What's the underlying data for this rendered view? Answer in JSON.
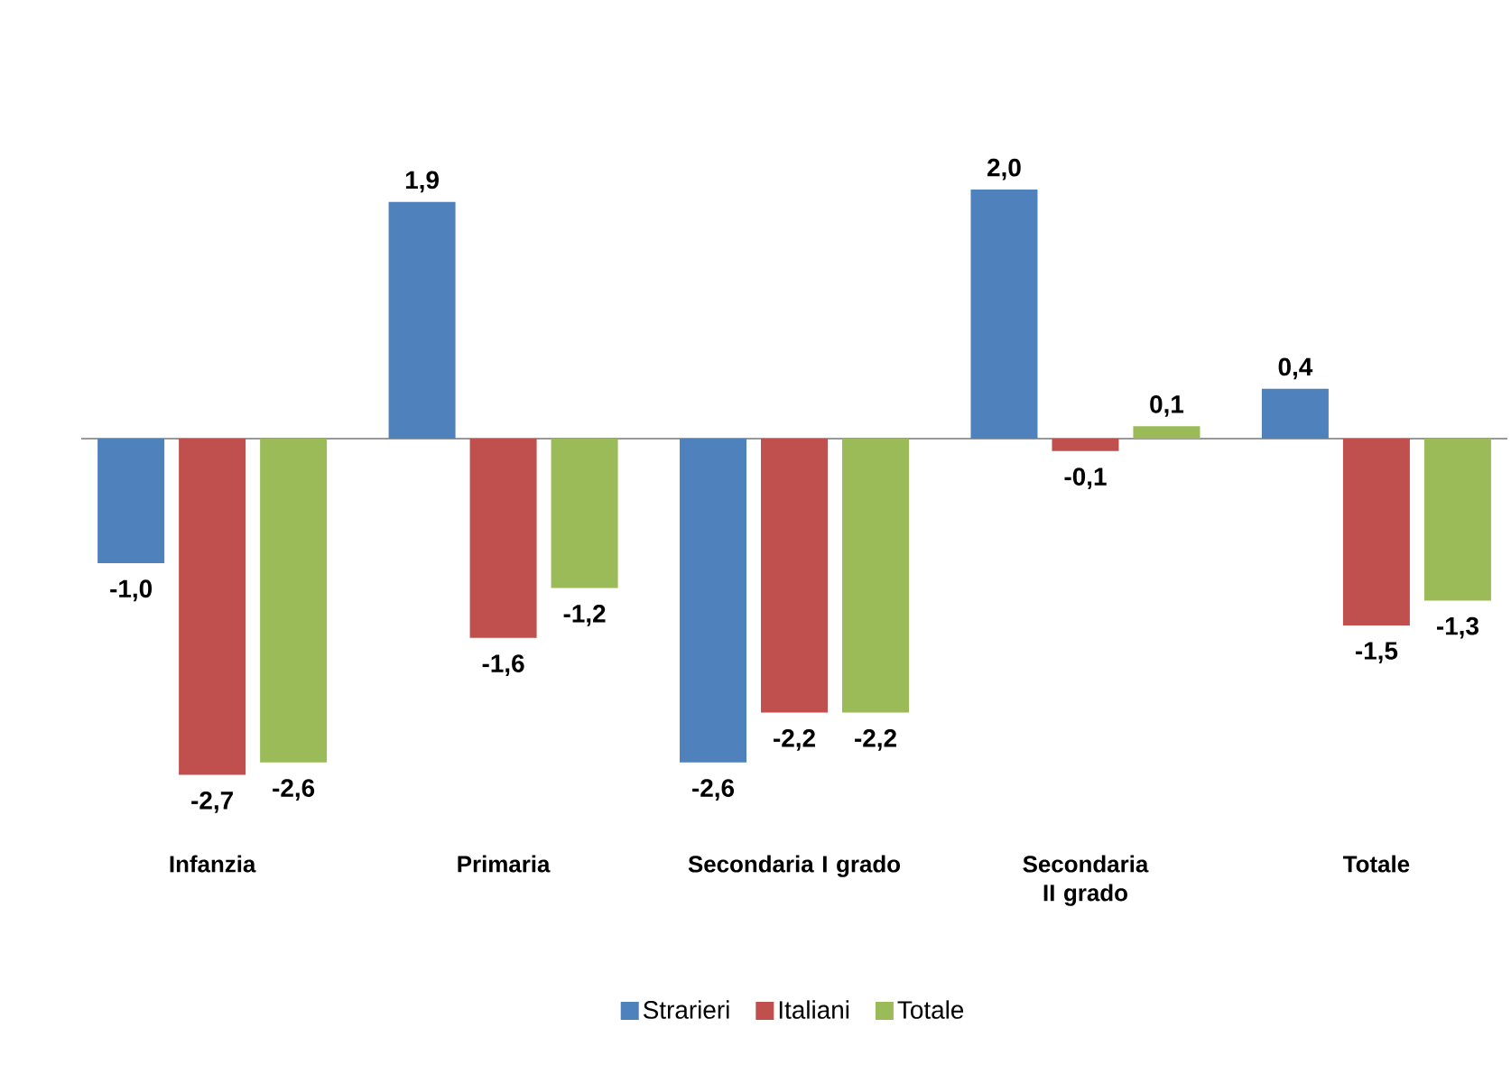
{
  "chart_data": {
    "type": "bar",
    "categories": [
      "Infanzia",
      "Primaria",
      "Secondaria I grado",
      "Secondaria II grado",
      "Totale"
    ],
    "series": [
      {
        "name": "Strarieri",
        "color": "#4f81bd",
        "values": [
          -1.0,
          1.9,
          -2.6,
          2.0,
          0.4
        ],
        "value_labels": [
          "-1,0",
          "1,9",
          "-2,6",
          "2,0",
          "0,4"
        ]
      },
      {
        "name": "Italiani",
        "color": "#c0504d",
        "values": [
          -2.7,
          -1.6,
          -2.2,
          -0.1,
          -1.5
        ],
        "value_labels": [
          "-2,7",
          "-1,6",
          "-2,2",
          "-0,1",
          "-1,5"
        ]
      },
      {
        "name": "Totale",
        "color": "#9bbb59",
        "values": [
          -2.6,
          -1.2,
          -2.2,
          0.1,
          -1.3
        ],
        "value_labels": [
          "-2,6",
          "-1,2",
          "-2,2",
          "0,1",
          "-1,3"
        ]
      }
    ],
    "legend": "bottom"
  }
}
